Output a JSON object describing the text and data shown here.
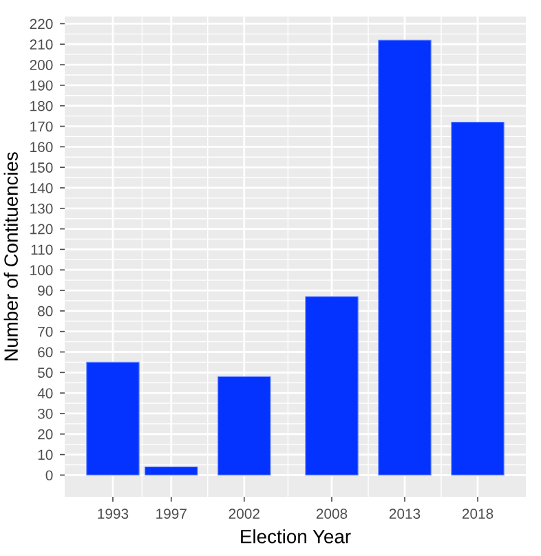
{
  "chart_data": {
    "type": "bar",
    "x": [
      1993,
      1997,
      2002,
      2008,
      2013,
      2018
    ],
    "values": [
      55,
      4,
      48,
      87,
      212,
      172
    ],
    "color": "#0433ff",
    "xlabel": "Election Year",
    "ylabel": "Number of Contituencies",
    "xlim": [
      1989.7,
      2021.3
    ],
    "xticks": [
      1993,
      1997,
      2002,
      2008,
      2013,
      2018
    ],
    "ylim": [
      -10.6,
      223.5
    ],
    "yticks": [
      0,
      10,
      20,
      30,
      40,
      50,
      60,
      70,
      80,
      90,
      100,
      110,
      120,
      130,
      140,
      150,
      160,
      170,
      180,
      190,
      200,
      210,
      220
    ],
    "grid": true
  }
}
